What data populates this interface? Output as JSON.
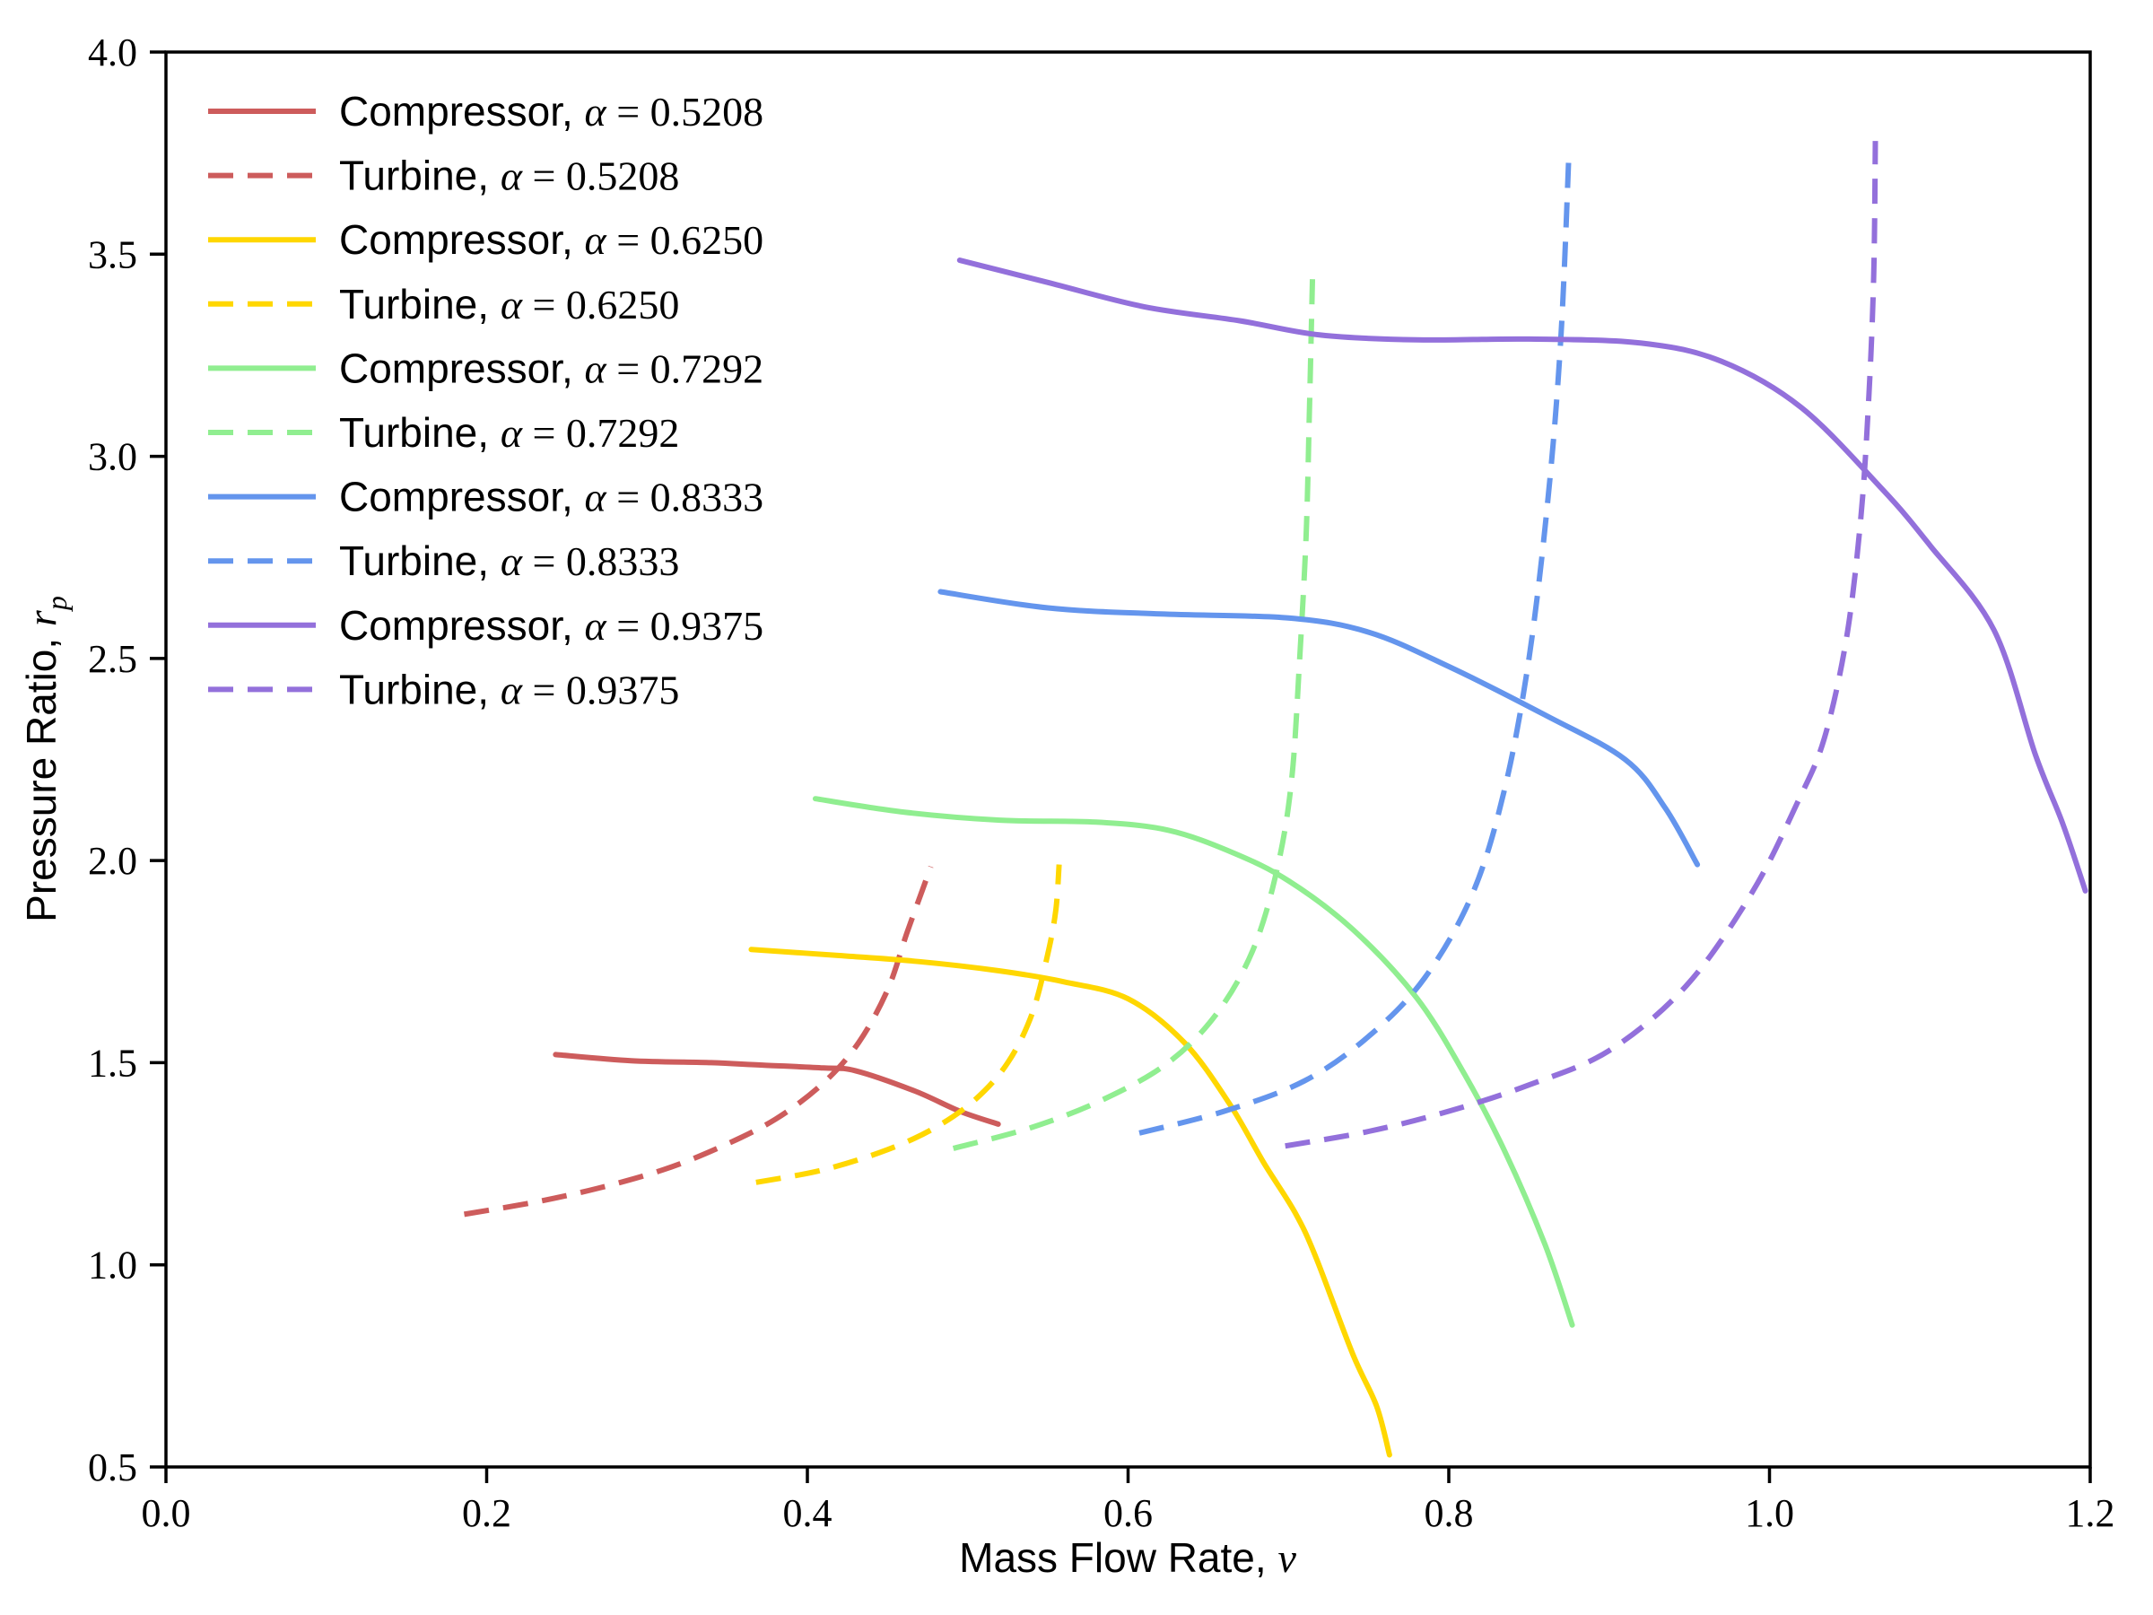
{
  "figure": {
    "background": "#ffffff",
    "xlabel": {
      "text": "Mass Flow Rate, ",
      "symbol": "ν"
    },
    "ylabel": {
      "text": "Pressure Ratio, ",
      "symbol": "r",
      "subscript": "p"
    },
    "legend": {
      "alpha_symbol": "α",
      "equals": "="
    }
  },
  "chart_data": {
    "type": "line",
    "title": "",
    "xlabel": "Mass Flow Rate, ν",
    "ylabel": "Pressure Ratio, r_p",
    "xlim": [
      0.0,
      1.2
    ],
    "ylim": [
      0.5,
      4.0
    ],
    "grid": false,
    "legend_position": "upper left",
    "x_ticks": [
      0.0,
      0.2,
      0.4,
      0.6,
      0.8,
      1.0,
      1.2
    ],
    "x_tick_labels": [
      "0.0",
      "0.2",
      "0.4",
      "0.6",
      "0.8",
      "1.0",
      "1.2"
    ],
    "y_ticks": [
      0.5,
      1.0,
      1.5,
      2.0,
      2.5,
      3.0,
      3.5,
      4.0
    ],
    "y_tick_labels": [
      "0.5",
      "1.0",
      "1.5",
      "2.0",
      "2.5",
      "3.0",
      "3.5",
      "4.0"
    ],
    "series": [
      {
        "label": "Compressor, α = 0.5208",
        "component": "Compressor",
        "alpha": "0.5208",
        "style": "solid",
        "color": "#cd5c5c",
        "points": [
          [
            0.243,
            1.52
          ],
          [
            0.29,
            1.505
          ],
          [
            0.34,
            1.5
          ],
          [
            0.372,
            1.494
          ],
          [
            0.41,
            1.487
          ],
          [
            0.43,
            1.48
          ],
          [
            0.467,
            1.43
          ],
          [
            0.495,
            1.38
          ],
          [
            0.519,
            1.348
          ]
        ]
      },
      {
        "label": "Turbine, α = 0.5208",
        "component": "Turbine",
        "alpha": "0.5208",
        "style": "dashed",
        "color": "#cd5c5c",
        "points": [
          [
            0.186,
            1.125
          ],
          [
            0.23,
            1.155
          ],
          [
            0.27,
            1.19
          ],
          [
            0.31,
            1.235
          ],
          [
            0.345,
            1.29
          ],
          [
            0.38,
            1.36
          ],
          [
            0.41,
            1.45
          ],
          [
            0.432,
            1.55
          ],
          [
            0.45,
            1.68
          ],
          [
            0.462,
            1.82
          ],
          [
            0.472,
            1.93
          ],
          [
            0.477,
            1.985
          ]
        ]
      },
      {
        "label": "Compressor, α = 0.6250",
        "component": "Compressor",
        "alpha": "0.6250",
        "style": "solid",
        "color": "#ffd700",
        "points": [
          [
            0.365,
            1.78
          ],
          [
            0.42,
            1.765
          ],
          [
            0.47,
            1.75
          ],
          [
            0.52,
            1.727
          ],
          [
            0.56,
            1.7
          ],
          [
            0.6,
            1.658
          ],
          [
            0.635,
            1.55
          ],
          [
            0.663,
            1.4
          ],
          [
            0.685,
            1.25
          ],
          [
            0.704,
            1.13
          ],
          [
            0.717,
            1.02
          ],
          [
            0.74,
            0.78
          ],
          [
            0.755,
            0.65
          ],
          [
            0.763,
            0.53
          ]
        ]
      },
      {
        "label": "Turbine, α = 0.6250",
        "component": "Turbine",
        "alpha": "0.6250",
        "style": "dashed",
        "color": "#ffd700",
        "points": [
          [
            0.368,
            1.204
          ],
          [
            0.41,
            1.235
          ],
          [
            0.45,
            1.285
          ],
          [
            0.48,
            1.34
          ],
          [
            0.505,
            1.41
          ],
          [
            0.525,
            1.5
          ],
          [
            0.54,
            1.62
          ],
          [
            0.55,
            1.77
          ],
          [
            0.555,
            1.88
          ],
          [
            0.557,
            1.99
          ]
        ]
      },
      {
        "label": "Compressor, α = 0.7292",
        "component": "Compressor",
        "alpha": "0.7292",
        "style": "solid",
        "color": "#90ee90",
        "points": [
          [
            0.405,
            2.153
          ],
          [
            0.46,
            2.12
          ],
          [
            0.52,
            2.1
          ],
          [
            0.58,
            2.095
          ],
          [
            0.625,
            2.075
          ],
          [
            0.665,
            2.02
          ],
          [
            0.7,
            1.95
          ],
          [
            0.74,
            1.83
          ],
          [
            0.78,
            1.66
          ],
          [
            0.81,
            1.47
          ],
          [
            0.835,
            1.28
          ],
          [
            0.86,
            1.05
          ],
          [
            0.877,
            0.851
          ]
        ]
      },
      {
        "label": "Turbine, α = 0.7292",
        "component": "Turbine",
        "alpha": "0.7292",
        "style": "dashed",
        "color": "#90ee90",
        "points": [
          [
            0.491,
            1.288
          ],
          [
            0.54,
            1.34
          ],
          [
            0.585,
            1.41
          ],
          [
            0.625,
            1.5
          ],
          [
            0.655,
            1.62
          ],
          [
            0.678,
            1.78
          ],
          [
            0.693,
            1.98
          ],
          [
            0.702,
            2.2
          ],
          [
            0.707,
            2.5
          ],
          [
            0.711,
            2.8
          ],
          [
            0.713,
            3.1
          ],
          [
            0.715,
            3.445
          ]
        ]
      },
      {
        "label": "Compressor, α = 0.8333",
        "component": "Compressor",
        "alpha": "0.8333",
        "style": "solid",
        "color": "#6495ed",
        "points": [
          [
            0.483,
            2.665
          ],
          [
            0.55,
            2.625
          ],
          [
            0.62,
            2.61
          ],
          [
            0.7,
            2.6
          ],
          [
            0.75,
            2.565
          ],
          [
            0.8,
            2.48
          ],
          [
            0.86,
            2.36
          ],
          [
            0.91,
            2.25
          ],
          [
            0.935,
            2.13
          ],
          [
            0.955,
            1.99
          ]
        ]
      },
      {
        "label": "Turbine, α = 0.8333",
        "component": "Turbine",
        "alpha": "0.8333",
        "style": "dashed",
        "color": "#6495ed",
        "points": [
          [
            0.607,
            1.326
          ],
          [
            0.66,
            1.38
          ],
          [
            0.71,
            1.455
          ],
          [
            0.75,
            1.565
          ],
          [
            0.785,
            1.71
          ],
          [
            0.815,
            1.92
          ],
          [
            0.835,
            2.18
          ],
          [
            0.85,
            2.5
          ],
          [
            0.862,
            2.9
          ],
          [
            0.87,
            3.3
          ],
          [
            0.875,
            3.76
          ]
        ]
      },
      {
        "label": "Compressor, α = 0.9375",
        "component": "Compressor",
        "alpha": "0.9375",
        "style": "solid",
        "color": "#9370db",
        "points": [
          [
            0.495,
            3.485
          ],
          [
            0.55,
            3.43
          ],
          [
            0.61,
            3.37
          ],
          [
            0.67,
            3.335
          ],
          [
            0.72,
            3.3
          ],
          [
            0.78,
            3.288
          ],
          [
            0.85,
            3.29
          ],
          [
            0.92,
            3.28
          ],
          [
            0.97,
            3.235
          ],
          [
            1.02,
            3.12
          ],
          [
            1.07,
            2.92
          ],
          [
            1.1,
            2.78
          ],
          [
            1.14,
            2.57
          ],
          [
            1.166,
            2.26
          ],
          [
            1.183,
            2.09
          ],
          [
            1.197,
            1.925
          ]
        ]
      },
      {
        "label": "Turbine, α = 0.9375",
        "component": "Turbine",
        "alpha": "0.9375",
        "style": "dashed",
        "color": "#9370db",
        "points": [
          [
            0.698,
            1.294
          ],
          [
            0.75,
            1.33
          ],
          [
            0.8,
            1.38
          ],
          [
            0.85,
            1.445
          ],
          [
            0.9,
            1.53
          ],
          [
            0.948,
            1.69
          ],
          [
            0.989,
            1.92
          ],
          [
            1.017,
            2.14
          ],
          [
            1.034,
            2.3
          ],
          [
            1.048,
            2.55
          ],
          [
            1.057,
            2.85
          ],
          [
            1.062,
            3.15
          ],
          [
            1.065,
            3.45
          ],
          [
            1.066,
            3.78
          ]
        ]
      }
    ]
  }
}
